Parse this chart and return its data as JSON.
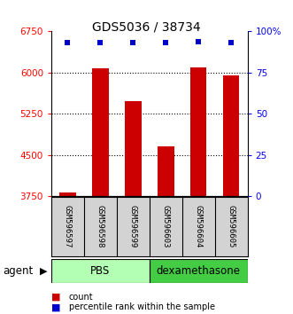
{
  "title": "GDS5036 / 38734",
  "samples": [
    "GSM596597",
    "GSM596598",
    "GSM596599",
    "GSM596603",
    "GSM596604",
    "GSM596605"
  ],
  "counts": [
    3820,
    6080,
    5480,
    4650,
    6090,
    5950
  ],
  "percentile_ranks": [
    93,
    93,
    93,
    93,
    94,
    93
  ],
  "group_colors": {
    "PBS": "#b3ffb3",
    "dexamethasone": "#44cc44"
  },
  "bar_color": "#cc0000",
  "dot_color": "#0000cc",
  "ylim_left": [
    3750,
    6750
  ],
  "ylim_right": [
    0,
    100
  ],
  "yticks_left": [
    3750,
    4500,
    5250,
    6000,
    6750
  ],
  "yticks_right": [
    0,
    25,
    50,
    75,
    100
  ],
  "ytick_labels_right": [
    "0",
    "25",
    "50",
    "75",
    "100%"
  ],
  "grid_values": [
    4500,
    5250,
    6000
  ],
  "ybaseline": 3750,
  "background_color": "#ffffff"
}
